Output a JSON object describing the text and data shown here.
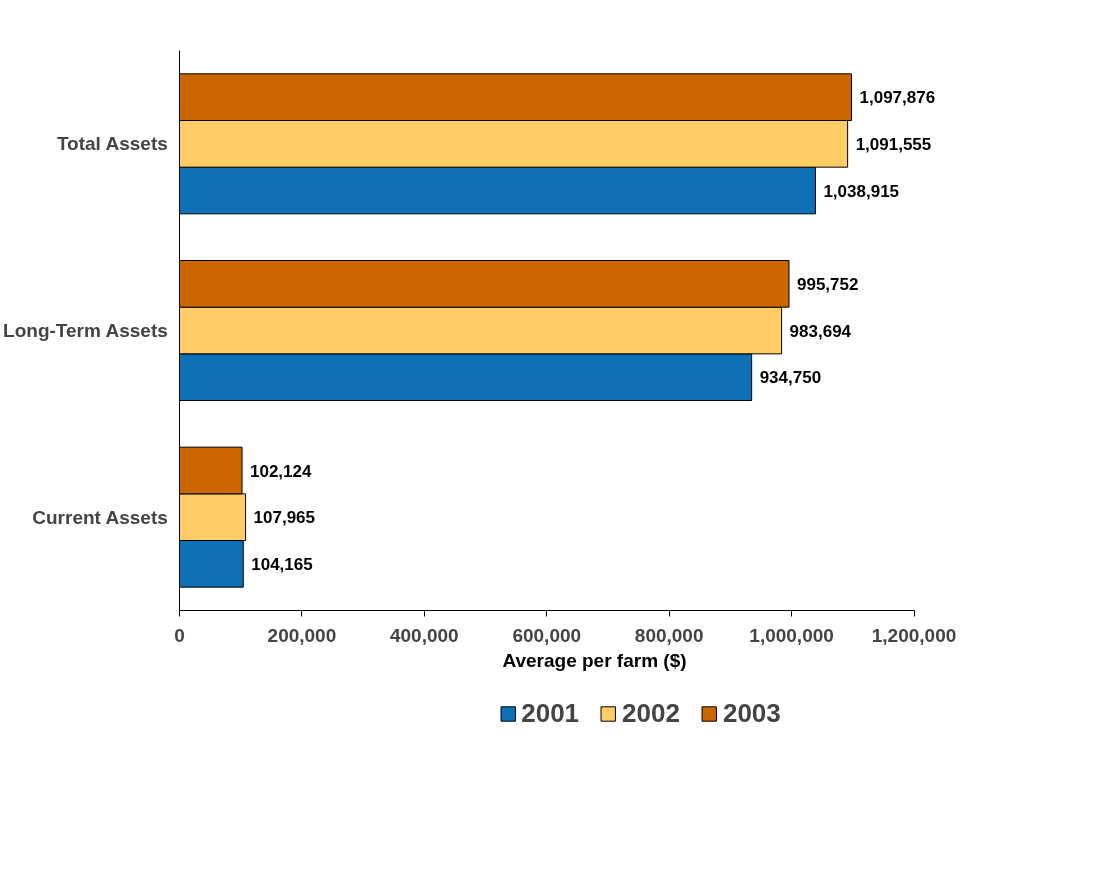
{
  "chart_data": {
    "type": "bar",
    "orientation": "horizontal",
    "xlabel": "Average per farm ($)",
    "categories": [
      "Total Assets",
      "Long-Term Assets",
      "Current Assets"
    ],
    "series": [
      {
        "name": "2001",
        "color": "#0f70b8",
        "values": [
          1038915,
          934750,
          104165
        ],
        "value_labels": [
          "1,038,915",
          "934,750",
          "104,165"
        ]
      },
      {
        "name": "2002",
        "color": "#ffcc66",
        "values": [
          1091555,
          983694,
          107965
        ],
        "value_labels": [
          "1,091,555",
          "983,694",
          "107,965"
        ]
      },
      {
        "name": "2003",
        "color": "#cc6600",
        "values": [
          1097876,
          995752,
          102124
        ],
        "value_labels": [
          "1,097,876",
          "995,752",
          "102,124"
        ]
      }
    ],
    "xlim": [
      0,
      1200000
    ],
    "xticks": [
      0,
      {
        "value": 200000,
        "label": "200,000"
      },
      {
        "value": 400000,
        "label": "400,000"
      },
      {
        "value": 600000,
        "label": "600,000"
      },
      {
        "value": 800000,
        "label": "800,000"
      },
      {
        "value": 1000000,
        "label": "1,000,000"
      },
      {
        "value": 1200000,
        "label": "1,200,000"
      }
    ],
    "data_labels": true,
    "legend": "bottom",
    "grid": false
  }
}
